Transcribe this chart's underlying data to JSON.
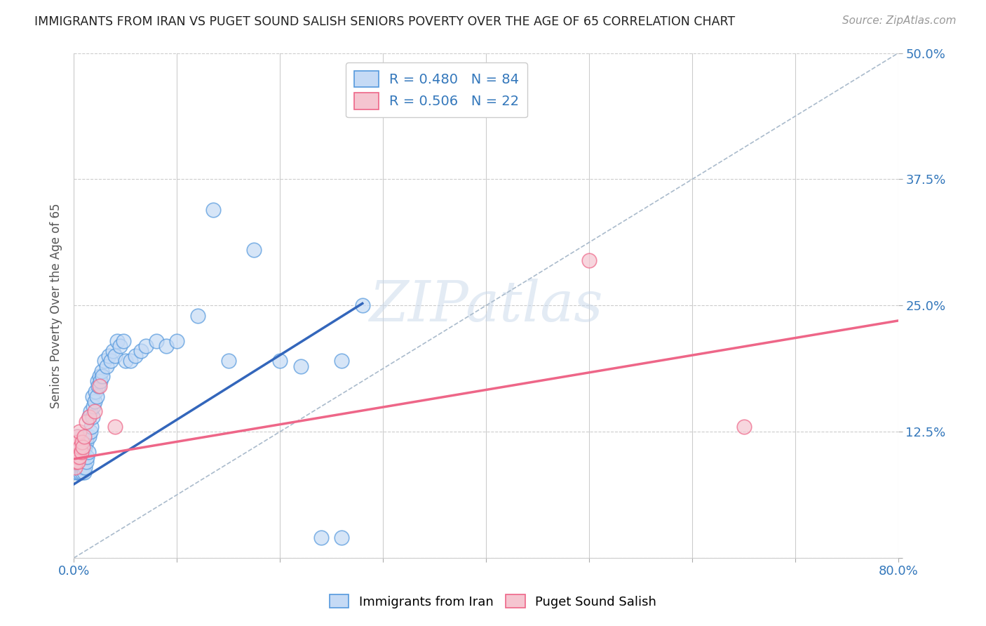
{
  "title": "IMMIGRANTS FROM IRAN VS PUGET SOUND SALISH SENIORS POVERTY OVER THE AGE OF 65 CORRELATION CHART",
  "source": "Source: ZipAtlas.com",
  "ylabel": "Seniors Poverty Over the Age of 65",
  "legend_label1": "Immigrants from Iran",
  "legend_label2": "Puget Sound Salish",
  "r1": 0.48,
  "n1": 84,
  "r2": 0.506,
  "n2": 22,
  "xlim": [
    0.0,
    0.8
  ],
  "ylim": [
    0.0,
    0.5
  ],
  "color_blue_fill": "#c5daf5",
  "color_blue_edge": "#5599dd",
  "color_pink_fill": "#f5c5d0",
  "color_pink_edge": "#ee6688",
  "line_blue": "#3366bb",
  "line_pink": "#ee6688",
  "line_dash": "#aabbcc",
  "watermark": "ZIPatlas",
  "blue_line_x0": 0.0,
  "blue_line_y0": 0.073,
  "blue_line_x1": 0.28,
  "blue_line_y1": 0.252,
  "pink_line_x0": 0.0,
  "pink_line_y0": 0.098,
  "pink_line_x1": 0.8,
  "pink_line_y1": 0.235,
  "blue_x": [
    0.001,
    0.001,
    0.001,
    0.002,
    0.002,
    0.002,
    0.002,
    0.003,
    0.003,
    0.003,
    0.003,
    0.004,
    0.004,
    0.004,
    0.004,
    0.005,
    0.005,
    0.005,
    0.006,
    0.006,
    0.006,
    0.006,
    0.007,
    0.007,
    0.007,
    0.008,
    0.008,
    0.008,
    0.009,
    0.009,
    0.01,
    0.01,
    0.01,
    0.011,
    0.011,
    0.012,
    0.012,
    0.013,
    0.013,
    0.014,
    0.015,
    0.015,
    0.016,
    0.016,
    0.017,
    0.018,
    0.018,
    0.019,
    0.02,
    0.021,
    0.022,
    0.023,
    0.024,
    0.025,
    0.026,
    0.027,
    0.028,
    0.03,
    0.032,
    0.034,
    0.036,
    0.038,
    0.04,
    0.042,
    0.045,
    0.048,
    0.05,
    0.055,
    0.06,
    0.065,
    0.07,
    0.08,
    0.09,
    0.1,
    0.12,
    0.135,
    0.15,
    0.175,
    0.2,
    0.22,
    0.24,
    0.26,
    0.26,
    0.28
  ],
  "blue_y": [
    0.095,
    0.105,
    0.115,
    0.085,
    0.095,
    0.105,
    0.115,
    0.09,
    0.1,
    0.11,
    0.12,
    0.085,
    0.095,
    0.105,
    0.115,
    0.09,
    0.1,
    0.11,
    0.085,
    0.095,
    0.105,
    0.115,
    0.09,
    0.1,
    0.11,
    0.085,
    0.1,
    0.115,
    0.09,
    0.105,
    0.085,
    0.1,
    0.115,
    0.09,
    0.11,
    0.095,
    0.115,
    0.1,
    0.12,
    0.105,
    0.12,
    0.14,
    0.125,
    0.145,
    0.13,
    0.14,
    0.16,
    0.15,
    0.155,
    0.165,
    0.16,
    0.175,
    0.17,
    0.18,
    0.175,
    0.185,
    0.18,
    0.195,
    0.19,
    0.2,
    0.195,
    0.205,
    0.2,
    0.215,
    0.21,
    0.215,
    0.195,
    0.195,
    0.2,
    0.205,
    0.21,
    0.215,
    0.21,
    0.215,
    0.24,
    0.345,
    0.195,
    0.305,
    0.195,
    0.19,
    0.02,
    0.02,
    0.195,
    0.25
  ],
  "pink_x": [
    0.001,
    0.001,
    0.002,
    0.002,
    0.003,
    0.003,
    0.004,
    0.004,
    0.005,
    0.005,
    0.006,
    0.007,
    0.008,
    0.009,
    0.01,
    0.012,
    0.015,
    0.02,
    0.025,
    0.04,
    0.5,
    0.65
  ],
  "pink_y": [
    0.09,
    0.11,
    0.095,
    0.115,
    0.1,
    0.12,
    0.095,
    0.115,
    0.1,
    0.125,
    0.11,
    0.105,
    0.115,
    0.11,
    0.12,
    0.135,
    0.14,
    0.145,
    0.17,
    0.13,
    0.295,
    0.13
  ]
}
